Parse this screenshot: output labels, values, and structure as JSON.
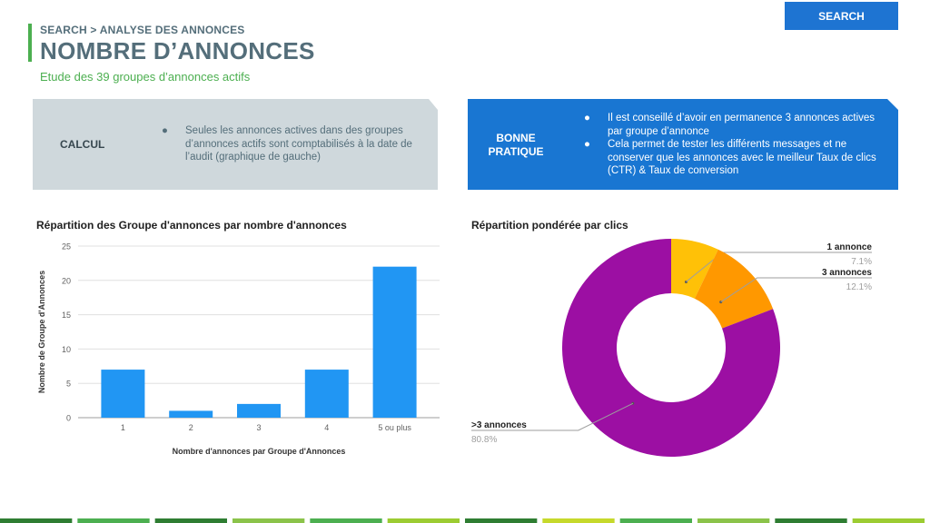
{
  "header": {
    "breadcrumb": "SEARCH > ANALYSE DES ANNONCES",
    "title": "NOMBRE D’ANNONCES",
    "subtitle": "Etude des 39 groupes d’annonces actifs",
    "badge": "SEARCH"
  },
  "panels": {
    "calc": {
      "label": "CALCUL",
      "bullets": [
        "Seules les annonces actives dans des groupes d’annonces actifs sont comptabilisés à la date de l’audit (graphique de gauche)"
      ]
    },
    "best": {
      "label": "BONNE PRATIQUE",
      "bullets": [
        "Il est conseillé d’avoir en permanence 3 annonces actives par groupe d’annonce",
        "Cela permet de tester les différents messages et ne conserver que les annonces avec le meilleur Taux de clics (CTR) & Taux de conversion"
      ]
    }
  },
  "colors": {
    "accent_green": "#4caf50",
    "title_gray": "#546e7a",
    "badge_blue": "#1e74d2",
    "bar_blue": "#2196f3"
  },
  "chart_data": [
    {
      "type": "bar",
      "title": "Répartition des Groupe d'annonces par nombre d'annonces",
      "categories": [
        "1",
        "2",
        "3",
        "4",
        "5 ou plus"
      ],
      "values": [
        7,
        1,
        2,
        7,
        22
      ],
      "xlabel": "Nombre d'annonces par Groupe d'Annonces",
      "ylabel": "Nombre de Groupe d'Annonces",
      "ylim": [
        0,
        25
      ],
      "yticks": [
        0,
        5,
        10,
        15,
        20,
        25
      ],
      "grid": true
    },
    {
      "type": "pie",
      "donut": true,
      "title": "Répartition pondérée par clics",
      "slices": [
        {
          "label": "1 annonce",
          "value": 7.1,
          "pct_label": "7.1%",
          "color": "#ffc107"
        },
        {
          "label": "3 annonces",
          "value": 12.1,
          "pct_label": "12.1%",
          "color": "#ff9800"
        },
        {
          "label": ">3 annonces",
          "value": 80.8,
          "pct_label": "80.8%",
          "color": "#9c0fa3"
        }
      ]
    }
  ],
  "footer_colors": [
    "#2e7d32",
    "#4caf50",
    "#2e7d32",
    "#8bc34a",
    "#4caf50",
    "#9ccc32",
    "#2e7d32",
    "#c6d92b",
    "#4caf50",
    "#8bc34a",
    "#2e7d32",
    "#9ccc32"
  ]
}
